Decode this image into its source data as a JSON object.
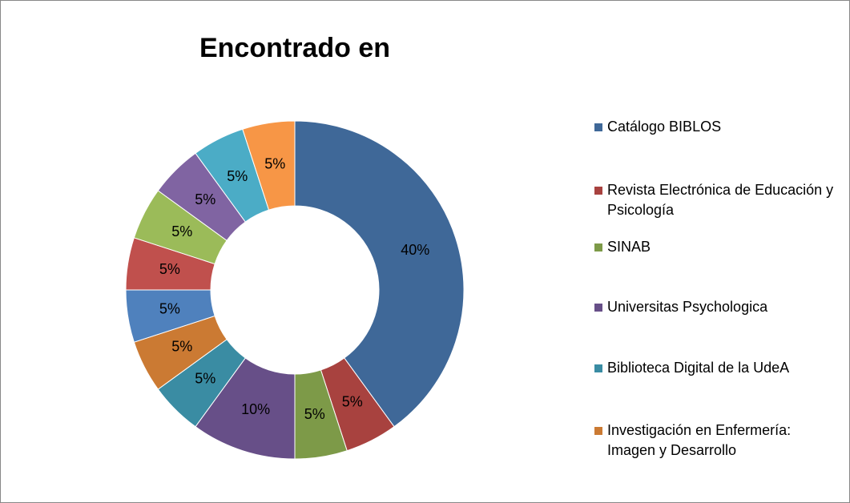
{
  "chart_data": {
    "type": "donut",
    "title": "Encontrado en",
    "categories": [
      "Catálogo BIBLOS",
      "Revista Electrónica de Educación y Psicología",
      "SINAB",
      "Universitas Psychologica",
      "Biblioteca Digital de la UdeA",
      "Investigación en Enfermería: Imagen y Desarrollo",
      null,
      null,
      null,
      null,
      null,
      null
    ],
    "values": [
      40,
      5,
      5,
      10,
      5,
      5,
      5,
      5,
      5,
      5,
      5,
      5
    ],
    "value_labels": [
      "40%",
      "5%",
      "5%",
      "10%",
      "5%",
      "5%",
      "5%",
      "5%",
      "5%",
      "5%",
      "5%",
      "5%"
    ],
    "colors": [
      "#3f6898",
      "#a8423f",
      "#7d9a48",
      "#674f88",
      "#3a8ca3",
      "#cb7a33",
      "#4f81bd",
      "#c0504d",
      "#9bbb59",
      "#8064a2",
      "#4bacc6",
      "#f79646"
    ],
    "legend": "right"
  }
}
